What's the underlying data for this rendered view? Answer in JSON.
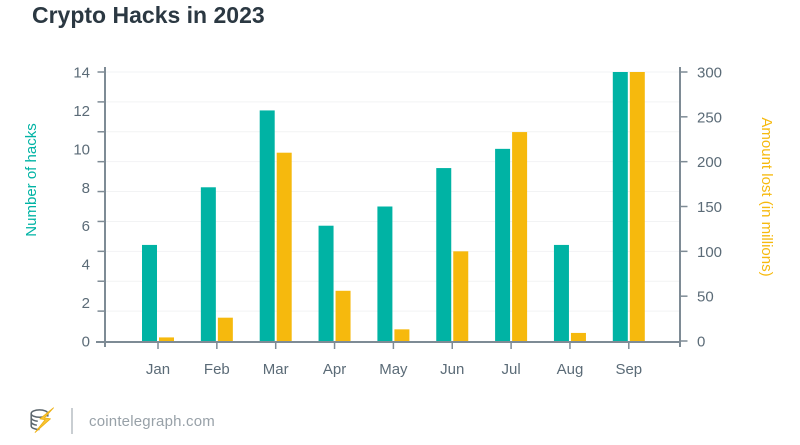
{
  "title": "Crypto Hacks in 2023",
  "footer": {
    "site": "cointelegraph.com",
    "logo": "cointelegraph-coin-bolt-logo"
  },
  "colors": {
    "hacks_teal": "#00b3a4",
    "amount_yellow": "#f6b90d",
    "title_text": "#2b3842",
    "tick_label": "#5b6b77",
    "axis_line": "#7e8b95",
    "gridline": "#f2f3f4",
    "footer_text": "#98a1a8",
    "logo_gray": "#5c666d",
    "logo_bolt": "#f9c537"
  },
  "chart_data": {
    "type": "bar",
    "title": "Crypto Hacks in 2023",
    "categories": [
      "Jan",
      "Feb",
      "Mar",
      "Apr",
      "May",
      "Jun",
      "Jul",
      "Aug",
      "Sep"
    ],
    "series": [
      {
        "name": "Number of hacks",
        "axis": "left",
        "color": "#00b3a4",
        "values": [
          5,
          8,
          12,
          6,
          7,
          9,
          10,
          5,
          14
        ]
      },
      {
        "name": "Amount lost (in millions)",
        "axis": "right",
        "color": "#f6b90d",
        "values": [
          4,
          26,
          210,
          56,
          13,
          100,
          233,
          9,
          300
        ]
      }
    ],
    "left_axis": {
      "label": "Number of hacks",
      "range": [
        0,
        14
      ],
      "ticks": [
        0,
        2,
        4,
        6,
        8,
        10,
        12,
        14
      ]
    },
    "right_axis": {
      "label": "Amount lost (in millions)",
      "range": [
        0,
        300
      ],
      "ticks": [
        0,
        50,
        100,
        150,
        200,
        250,
        300
      ]
    },
    "grid": true,
    "legend": "none"
  }
}
